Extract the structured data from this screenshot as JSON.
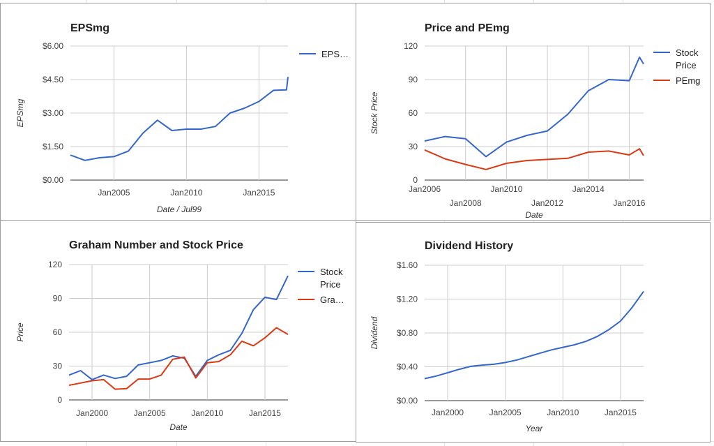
{
  "chart_data": [
    {
      "id": "eps",
      "type": "line",
      "title": "EPSmg",
      "xlabel": "Date / Jul99",
      "ylabel": "EPSmg",
      "ylim": [
        0,
        6
      ],
      "xlim": [
        2002,
        2017
      ],
      "y_ticks": [
        {
          "value": 0,
          "label": "$0.00"
        },
        {
          "value": 1.5,
          "label": "$1.50"
        },
        {
          "value": 3,
          "label": "$3.00"
        },
        {
          "value": 4.5,
          "label": "$4.50"
        },
        {
          "value": 6,
          "label": "$6.00"
        }
      ],
      "x_ticks": [
        {
          "value": 2005,
          "label": "Jan2005"
        },
        {
          "value": 2010,
          "label": "Jan2010"
        },
        {
          "value": 2015,
          "label": "Jan2015"
        }
      ],
      "grid": true,
      "legend_position": "right",
      "series": [
        {
          "name": "EPS…",
          "color": "#3366cc",
          "x": [
            2002,
            2003,
            2004,
            2005,
            2006,
            2007,
            2008,
            2009,
            2010,
            2011,
            2012,
            2013,
            2014,
            2015,
            2016,
            2016.9,
            2017
          ],
          "y": [
            1.12,
            0.88,
            1.0,
            1.05,
            1.3,
            2.1,
            2.68,
            2.22,
            2.28,
            2.28,
            2.4,
            3.0,
            3.22,
            3.52,
            4.02,
            4.04,
            4.62
          ]
        }
      ]
    },
    {
      "id": "price-pemg",
      "type": "line",
      "title": "Price and PEmg",
      "xlabel": "Date",
      "ylabel": "Stock Price",
      "ylim": [
        0,
        120
      ],
      "xlim": [
        2006,
        2016.7
      ],
      "y_ticks": [
        {
          "value": 0,
          "label": "0"
        },
        {
          "value": 30,
          "label": "30"
        },
        {
          "value": 60,
          "label": "60"
        },
        {
          "value": 90,
          "label": "90"
        },
        {
          "value": 120,
          "label": "120"
        }
      ],
      "x_ticks": [
        {
          "value": 2006,
          "label": "Jan2006",
          "row": 1
        },
        {
          "value": 2008,
          "label": "Jan2008",
          "row": 2
        },
        {
          "value": 2010,
          "label": "Jan2010",
          "row": 1
        },
        {
          "value": 2012,
          "label": "Jan2012",
          "row": 2
        },
        {
          "value": 2014,
          "label": "Jan2014",
          "row": 1
        },
        {
          "value": 2016,
          "label": "Jan2016",
          "row": 2
        }
      ],
      "grid": true,
      "legend_position": "right",
      "series": [
        {
          "name": "Stock Price",
          "color": "#3366cc",
          "x": [
            2006,
            2007,
            2008,
            2009,
            2010,
            2011,
            2012,
            2013,
            2014,
            2015,
            2016,
            2016.5,
            2016.7
          ],
          "y": [
            35,
            39,
            37,
            21,
            34,
            40,
            44,
            59,
            80,
            90,
            89,
            110,
            104
          ]
        },
        {
          "name": "PEmg",
          "color": "#dc3912",
          "x": [
            2006,
            2007,
            2008,
            2009,
            2010,
            2011,
            2012,
            2013,
            2014,
            2015,
            2016,
            2016.5,
            2016.7
          ],
          "y": [
            27,
            19,
            14,
            9.5,
            15,
            17.5,
            18.5,
            19.5,
            25,
            26,
            22.5,
            28,
            22
          ]
        }
      ]
    },
    {
      "id": "graham",
      "type": "line",
      "title": "Graham Number and Stock Price",
      "xlabel": "Date",
      "ylabel": "Price",
      "ylim": [
        0,
        120
      ],
      "xlim": [
        1998,
        2017
      ],
      "y_ticks": [
        {
          "value": 0,
          "label": "0"
        },
        {
          "value": 30,
          "label": "30"
        },
        {
          "value": 60,
          "label": "60"
        },
        {
          "value": 90,
          "label": "90"
        },
        {
          "value": 120,
          "label": "120"
        }
      ],
      "x_ticks": [
        {
          "value": 2000,
          "label": "Jan2000"
        },
        {
          "value": 2005,
          "label": "Jan2005"
        },
        {
          "value": 2010,
          "label": "Jan2010"
        },
        {
          "value": 2015,
          "label": "Jan2015"
        }
      ],
      "grid": true,
      "legend_position": "right",
      "series": [
        {
          "name": "Stock Price",
          "color": "#3366cc",
          "x": [
            1998,
            1999,
            2000,
            2001,
            2002,
            2003,
            2004,
            2005,
            2006,
            2007,
            2008,
            2009,
            2010,
            2011,
            2012,
            2013,
            2014,
            2015,
            2016,
            2017
          ],
          "y": [
            22,
            26,
            18,
            22,
            19,
            21,
            31,
            33,
            35,
            39,
            37,
            21,
            35,
            40,
            44,
            59,
            80,
            91,
            89,
            110
          ]
        },
        {
          "name": "Gra…",
          "color": "#dc3912",
          "x": [
            1998,
            1999,
            2000,
            2001,
            2002,
            2003,
            2004,
            2005,
            2006,
            2007,
            2008,
            2009,
            2010,
            2011,
            2012,
            2013,
            2014,
            2015,
            2016,
            2017
          ],
          "y": [
            13,
            15,
            17,
            18,
            9.5,
            10,
            18.5,
            18.5,
            22,
            36,
            38,
            19.5,
            33,
            34,
            40,
            52,
            48,
            55,
            64,
            58
          ]
        }
      ]
    },
    {
      "id": "dividend",
      "type": "line",
      "title": "Dividend History",
      "xlabel": "Year",
      "ylabel": "Dividend",
      "ylim": [
        0,
        1.6
      ],
      "xlim": [
        1998,
        2017
      ],
      "y_ticks": [
        {
          "value": 0,
          "label": "$0.00"
        },
        {
          "value": 0.4,
          "label": "$0.40"
        },
        {
          "value": 0.8,
          "label": "$0.80"
        },
        {
          "value": 1.2,
          "label": "$1.20"
        },
        {
          "value": 1.6,
          "label": "$1.60"
        }
      ],
      "x_ticks": [
        {
          "value": 2000,
          "label": "Jan2000"
        },
        {
          "value": 2005,
          "label": "Jan2005"
        },
        {
          "value": 2010,
          "label": "Jan2010"
        },
        {
          "value": 2015,
          "label": "Jan2015"
        }
      ],
      "grid": true,
      "legend_position": "none",
      "series": [
        {
          "name": "",
          "color": "#3366cc",
          "x": [
            1998,
            1999,
            2000,
            2001,
            2002,
            2003,
            2004,
            2005,
            2006,
            2007,
            2008,
            2009,
            2010,
            2011,
            2012,
            2013,
            2014,
            2015,
            2016,
            2017
          ],
          "y": [
            0.26,
            0.29,
            0.33,
            0.37,
            0.405,
            0.42,
            0.43,
            0.45,
            0.48,
            0.52,
            0.56,
            0.6,
            0.63,
            0.66,
            0.7,
            0.76,
            0.84,
            0.94,
            1.1,
            1.29
          ]
        }
      ]
    }
  ]
}
